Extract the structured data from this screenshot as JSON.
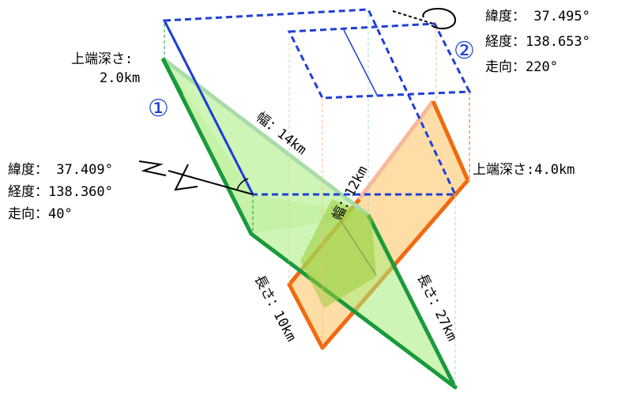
{
  "fault1": {
    "marker": "①",
    "depth_label": "上端深さ:",
    "depth_value": "2.0km",
    "lat": "緯度： 37.409°",
    "lon": "経度：138.360°",
    "strike": "走向：40°",
    "width": "幅：14km",
    "length": "長さ：27km"
  },
  "fault2": {
    "marker": "②",
    "depth": "上端深さ:4.0km",
    "lat": "緯度： 37.495°",
    "lon": "経度：138.653°",
    "strike": "走向：220°",
    "width": "幅：12km",
    "length": "長さ：10km"
  },
  "north_label": "N",
  "colors": {
    "fault1_fill": "#b4ee8a",
    "fault1_stroke": "#1a9a3c",
    "fault2_fill": "#ffc870",
    "fault2_stroke": "#f06a10",
    "projection": "#1e3fd8"
  }
}
